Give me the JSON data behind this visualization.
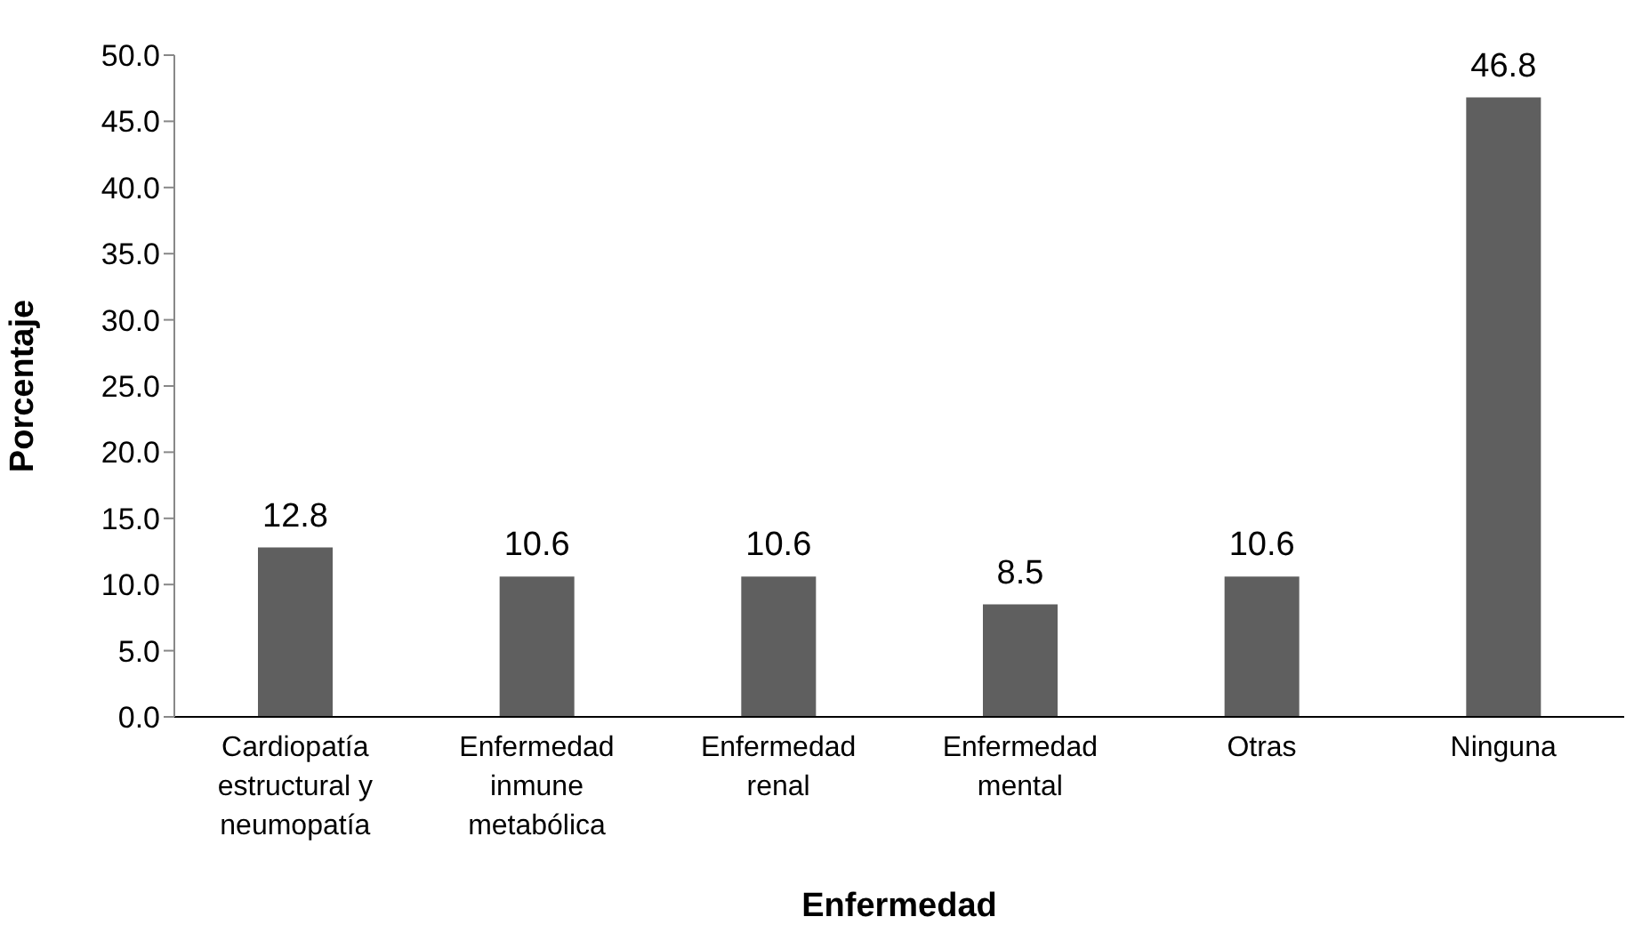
{
  "chart_data": {
    "type": "bar",
    "xlabel": "Enfermedad",
    "ylabel": "Porcentaje",
    "categories": [
      "Cardiopatía estructural y neumopatía",
      "Enfermedad inmune metabólica",
      "Enfermedad renal",
      "Enfermedad mental",
      "Otras",
      "Ninguna"
    ],
    "values": [
      12.8,
      10.6,
      10.6,
      8.5,
      10.6,
      46.8
    ],
    "color": "#5f5f5f",
    "data_labels": true,
    "grid": false,
    "legend": false,
    "ylim": [
      0,
      50
    ],
    "yticks": [
      {
        "value": 0,
        "label": "0.0"
      },
      {
        "value": 5,
        "label": "5.0"
      },
      {
        "value": 10,
        "label": "10.0"
      },
      {
        "value": 15,
        "label": "15.0"
      },
      {
        "value": 20,
        "label": "20.0"
      },
      {
        "value": 25,
        "label": "25.0"
      },
      {
        "value": 30,
        "label": "30.0"
      },
      {
        "value": 35,
        "label": "35.0"
      },
      {
        "value": 40,
        "label": "40.0"
      },
      {
        "value": 45,
        "label": "45.0"
      },
      {
        "value": 50,
        "label": "50.0"
      }
    ]
  }
}
